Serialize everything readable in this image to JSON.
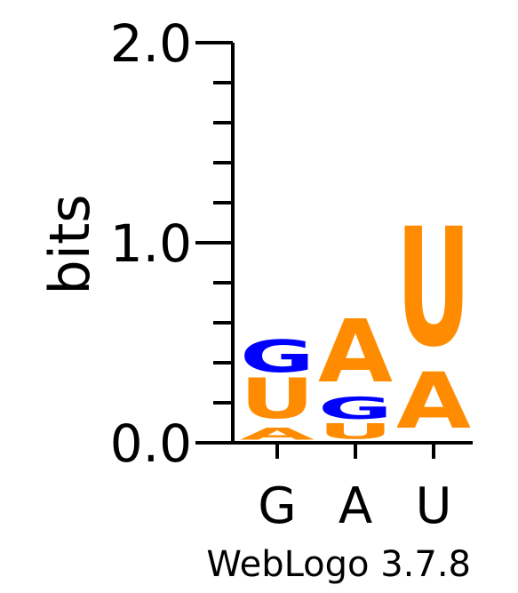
{
  "chart_data": {
    "type": "sequence-logo",
    "ylabel": "bits",
    "ylim": [
      0,
      2
    ],
    "y_tick_labels": [
      "0.0",
      "1.0",
      "2.0"
    ],
    "y_minor_step": 0.2,
    "positions": [
      {
        "label": "G",
        "letters": [
          {
            "char": "A",
            "height": 0.07
          },
          {
            "char": "U",
            "height": 0.24
          },
          {
            "char": "G",
            "height": 0.19
          }
        ]
      },
      {
        "label": "A",
        "letters": [
          {
            "char": "U",
            "height": 0.09
          },
          {
            "char": "G",
            "height": 0.13
          },
          {
            "char": "A",
            "height": 0.37
          }
        ]
      },
      {
        "label": "U",
        "letters": [
          {
            "char": "A",
            "height": 0.33
          },
          {
            "char": "U",
            "height": 0.7
          }
        ]
      }
    ],
    "colors": {
      "A": "#ff8c00",
      "U": "#ff8c00",
      "G": "#0000ff"
    }
  },
  "footer": "WebLogo 3.7.8"
}
